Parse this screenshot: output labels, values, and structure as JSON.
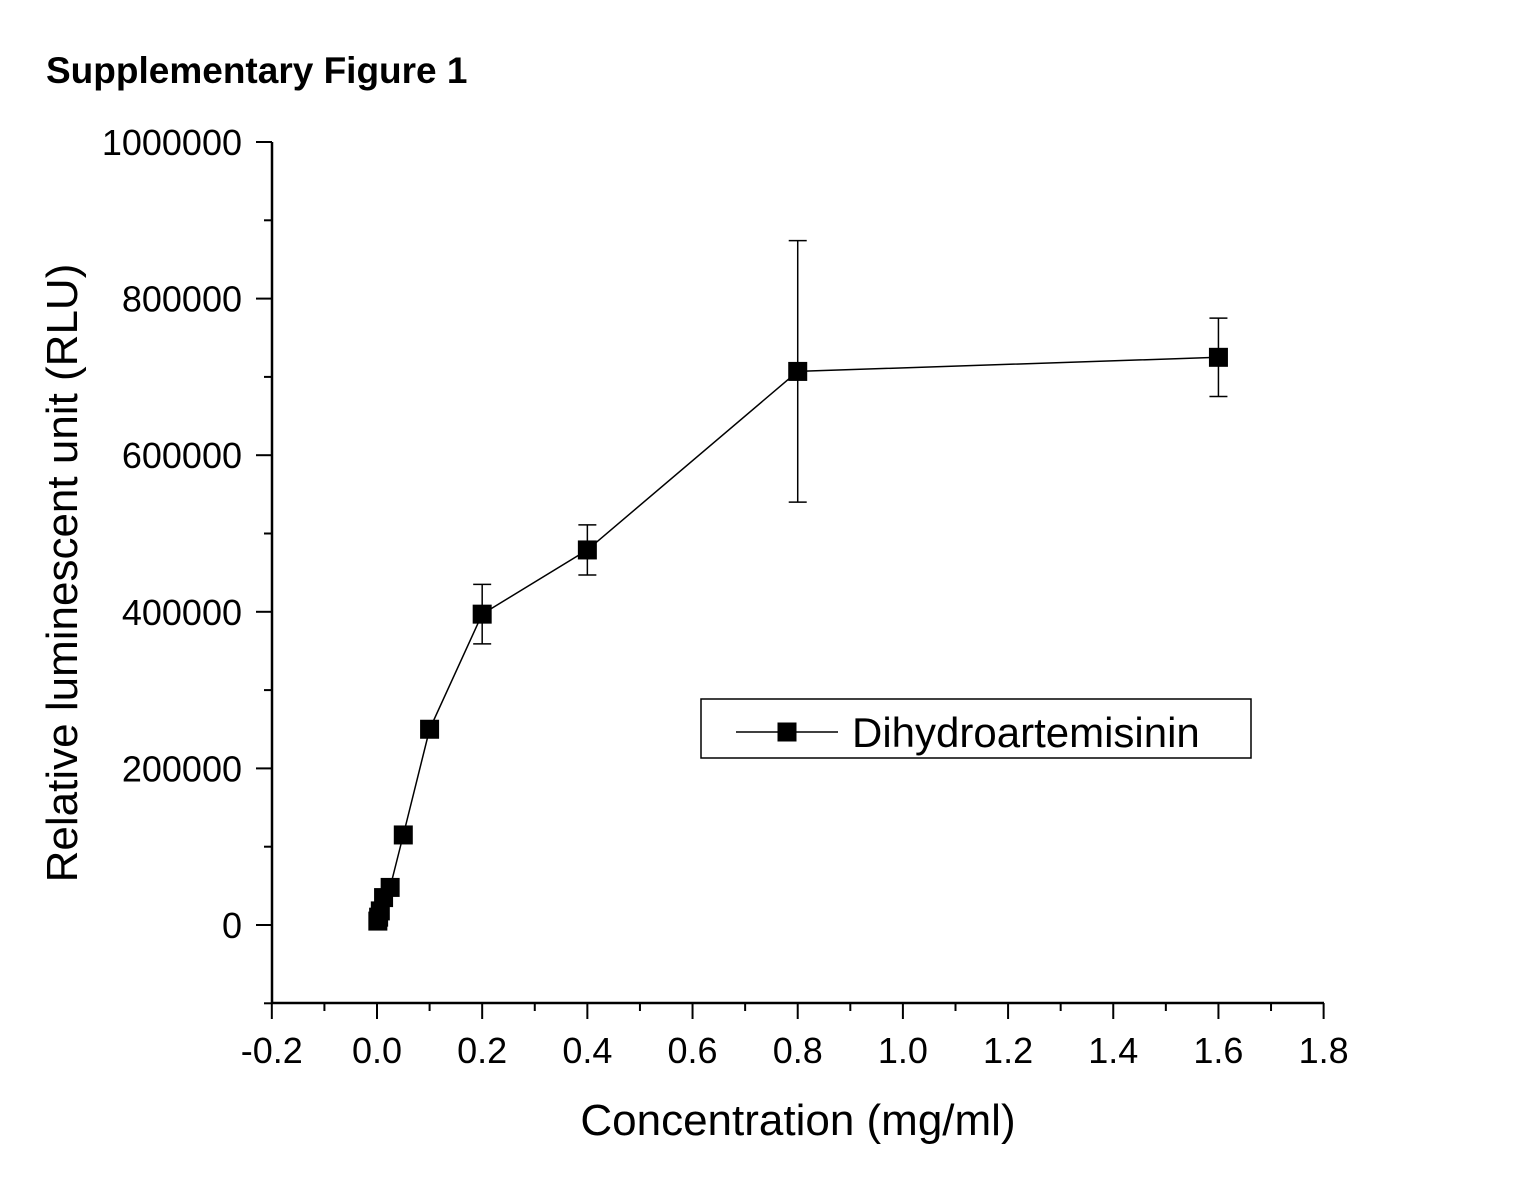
{
  "figure": {
    "title": "Supplementary Figure 1"
  },
  "chart_data": {
    "type": "line",
    "title": "",
    "xlabel": "Concentration (mg/ml)",
    "ylabel": "Relative luminescent unit (RLU)",
    "xlim": [
      -0.2,
      1.8
    ],
    "ylim": [
      -100000,
      1000000
    ],
    "x_ticks": [
      -0.2,
      0.0,
      0.2,
      0.4,
      0.6,
      0.8,
      1.0,
      1.2,
      1.4,
      1.6,
      1.8
    ],
    "x_tick_labels": [
      "-0.2",
      "0.0",
      "0.2",
      "0.4",
      "0.6",
      "0.8",
      "1.0",
      "1.2",
      "1.4",
      "1.6",
      "1.8"
    ],
    "y_ticks": [
      0,
      200000,
      400000,
      600000,
      800000,
      1000000
    ],
    "y_tick_labels": [
      "0",
      "200000",
      "400000",
      "600000",
      "800000",
      "1000000"
    ],
    "grid": false,
    "legend_position": "right-center",
    "series": [
      {
        "name": "Dihydroartemisinin",
        "color": "#000000",
        "marker": "square",
        "x": [
          0.0016,
          0.0031,
          0.0063,
          0.0125,
          0.025,
          0.05,
          0.1,
          0.2,
          0.4,
          0.8,
          1.6
        ],
        "y": [
          5000,
          10000,
          18000,
          35000,
          48000,
          115000,
          250000,
          397000,
          479000,
          707000,
          725000
        ],
        "error": [
          null,
          null,
          null,
          null,
          null,
          null,
          null,
          38000,
          32000,
          167000,
          50000
        ]
      }
    ]
  }
}
